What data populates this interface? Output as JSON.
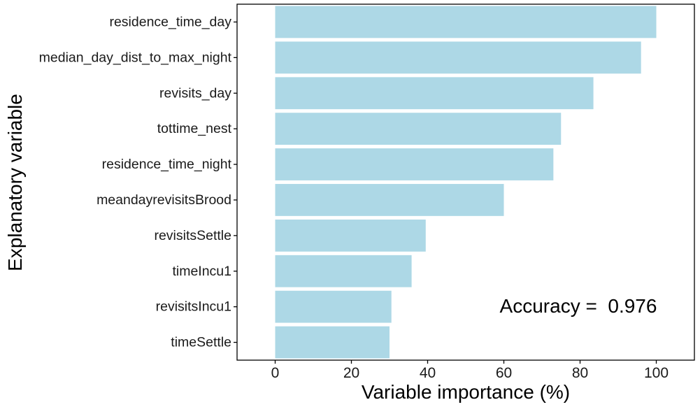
{
  "chart_data": {
    "type": "bar",
    "orientation": "horizontal",
    "title": "",
    "xlabel": "Variable importance (%)",
    "ylabel": "Explanatory variable",
    "xlim": [
      -10,
      110
    ],
    "xticks": [
      0,
      20,
      40,
      60,
      80,
      100
    ],
    "grid": false,
    "bar_color": "#ADD8E6",
    "categories": [
      "residence_time_day",
      "median_day_dist_to_max_night",
      "revisits_day",
      "tottime_nest",
      "residence_time_night",
      "meandayrevisitsBrood",
      "revisitsSettle",
      "timeIncu1",
      "revisitsIncu1",
      "timeSettle"
    ],
    "values": [
      100,
      96,
      83.5,
      75,
      73,
      60,
      39.5,
      35.8,
      30.5,
      30
    ],
    "annotations": [
      {
        "text": "Accuracy =  0.976"
      }
    ]
  }
}
